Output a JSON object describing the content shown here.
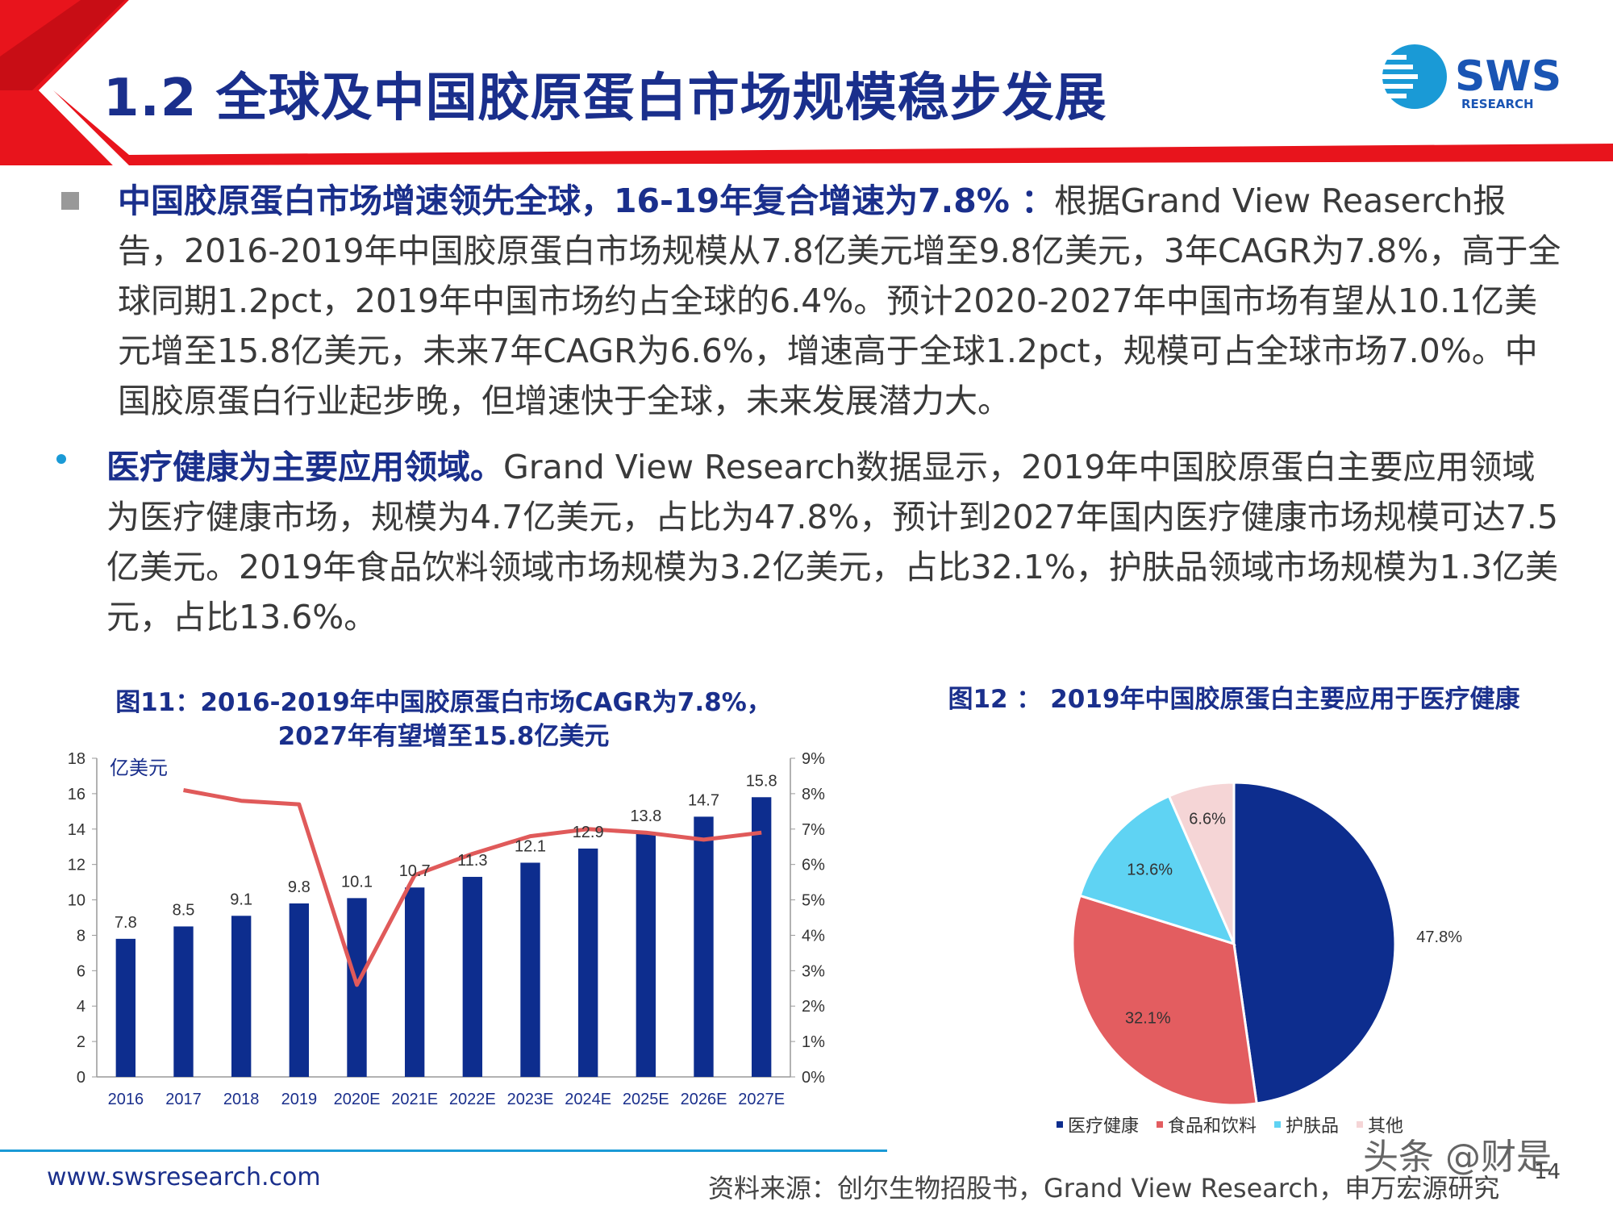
{
  "header": {
    "title": "1.2 全球及中国胶原蛋白市场规模稳步发展"
  },
  "logo": {
    "text": "SWS",
    "subtext": "RESEARCH"
  },
  "paragraph1": {
    "highlight": "中国胶原蛋白市场增速领先全球，16-19年复合增速为7.8% ：",
    "text": "根据Grand View Reaserch报告，2016-2019年中国胶原蛋白市场规模从7.8亿美元增至9.8亿美元，3年CAGR为7.8%，高于全球同期1.2pct，2019年中国市场约占全球的6.4%。预计2020-2027年中国市场有望从10.1亿美元增至15.8亿美元，未来7年CAGR为6.6%，增速高于全球1.2pct，规模可占全球市场7.0%。中国胶原蛋白行业起步晚，但增速快于全球，未来发展潜力大。"
  },
  "paragraph2": {
    "highlight": "医疗健康为主要应用领域。",
    "text": "Grand View Research数据显示，2019年中国胶原蛋白主要应用领域为医疗健康市场，规模为4.7亿美元，占比为47.8%，预计到2027年国内医疗健康市场规模可达7.5亿美元。2019年食品饮料领域市场规模为3.2亿美元，占比32.1%，护肤品领域市场规模为1.3亿美元，占比13.6%。"
  },
  "figure11": {
    "caption_line1": "图11：2016-2019年中国胶原蛋白市场CAGR为7.8%，",
    "caption_line2": "2027年有望增至15.8亿美元"
  },
  "figure12": {
    "caption": "图12 ： 2019年中国胶原蛋白主要应用于医疗健康"
  },
  "chart_data": [
    {
      "type": "bar",
      "categories": [
        "2016",
        "2017",
        "2018",
        "2019",
        "2020E",
        "2021E",
        "2022E",
        "2023E",
        "2024E",
        "2025E",
        "2026E",
        "2027E"
      ],
      "series": [
        {
          "values": [
            7.8,
            8.5,
            9.1,
            9.8,
            10.1,
            10.7,
            11.3,
            12.1,
            12.9,
            13.8,
            14.7,
            15.8
          ],
          "color": "#0d2d8e",
          "axis": "left"
        },
        {
          "type": "line",
          "values": [
            null,
            8.1,
            7.8,
            7.7,
            2.6,
            5.7,
            6.3,
            6.8,
            7.0,
            6.9,
            6.7,
            6.9
          ],
          "color": "#e05a5a",
          "axis": "right"
        }
      ],
      "ylabel": "亿美元",
      "ylim": [
        0,
        18
      ],
      "yticks": [
        "0",
        "2",
        "4",
        "6",
        "8",
        "10",
        "12",
        "14",
        "16",
        "18"
      ],
      "y2lim": [
        0,
        9
      ],
      "y2ticks": [
        "0%",
        "1%",
        "2%",
        "3%",
        "4%",
        "5%",
        "6%",
        "7%",
        "8%",
        "9%"
      ],
      "data_labels": [
        "7.8",
        "8.5",
        "9.1",
        "9.8",
        "10.1",
        "10.7",
        "11.3",
        "12.1",
        "12.9",
        "13.8",
        "14.7",
        "15.8"
      ]
    },
    {
      "type": "pie",
      "categories": [
        "医疗健康",
        "食品和饮料",
        "护肤品",
        "其他"
      ],
      "values": [
        47.8,
        32.1,
        13.6,
        6.6
      ],
      "labels": [
        "47.8%",
        "32.1%",
        "13.6%",
        "6.6%"
      ],
      "colors": [
        "#0d2d8e",
        "#e35d60",
        "#5fd3f3",
        "#f5d5d6"
      ],
      "legend": "bottom"
    }
  ],
  "footer": {
    "website": "www.swsresearch.com",
    "source": "资料来源：创尔生物招股书，Grand View Research，申万宏源研究",
    "page": "14",
    "watermark": "头条 @财是"
  }
}
